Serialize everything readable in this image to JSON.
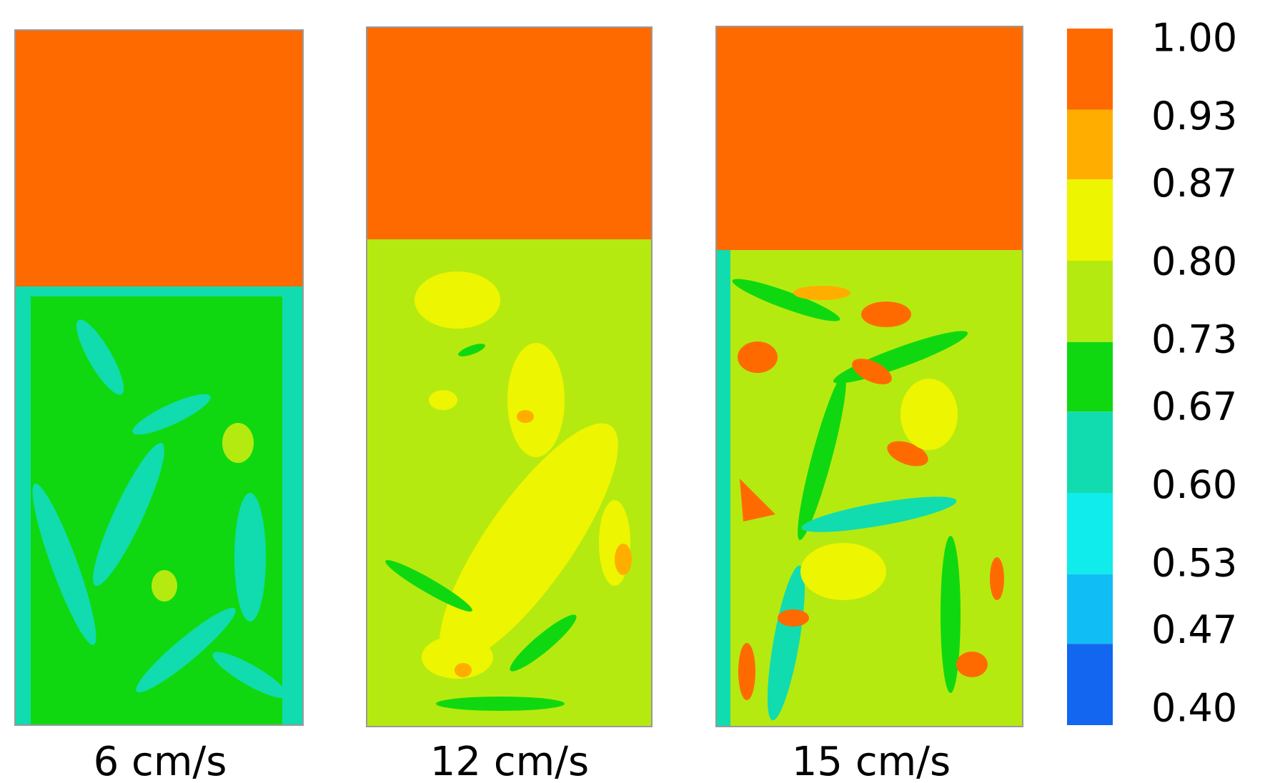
{
  "panels": [
    {
      "label": "6 cm/s"
    },
    {
      "label": "12 cm/s"
    },
    {
      "label": "15 cm/s"
    }
  ],
  "colorbar": {
    "ticks": [
      {
        "value": 1.0,
        "label": "1.00"
      },
      {
        "value": 0.93,
        "label": "0.93"
      },
      {
        "value": 0.87,
        "label": "0.87"
      },
      {
        "value": 0.8,
        "label": "0.80"
      },
      {
        "value": 0.73,
        "label": "0.73"
      },
      {
        "value": 0.67,
        "label": "0.67"
      },
      {
        "value": 0.6,
        "label": "0.60"
      },
      {
        "value": 0.53,
        "label": "0.53"
      },
      {
        "value": 0.47,
        "label": "0.47"
      },
      {
        "value": 0.4,
        "label": "0.40"
      }
    ],
    "colors": [
      "#ff6a00",
      "#ffae00",
      "#eef500",
      "#b5ea10",
      "#10d810",
      "#10dcb0",
      "#10ecec",
      "#10bef5",
      "#1266f0"
    ]
  }
}
